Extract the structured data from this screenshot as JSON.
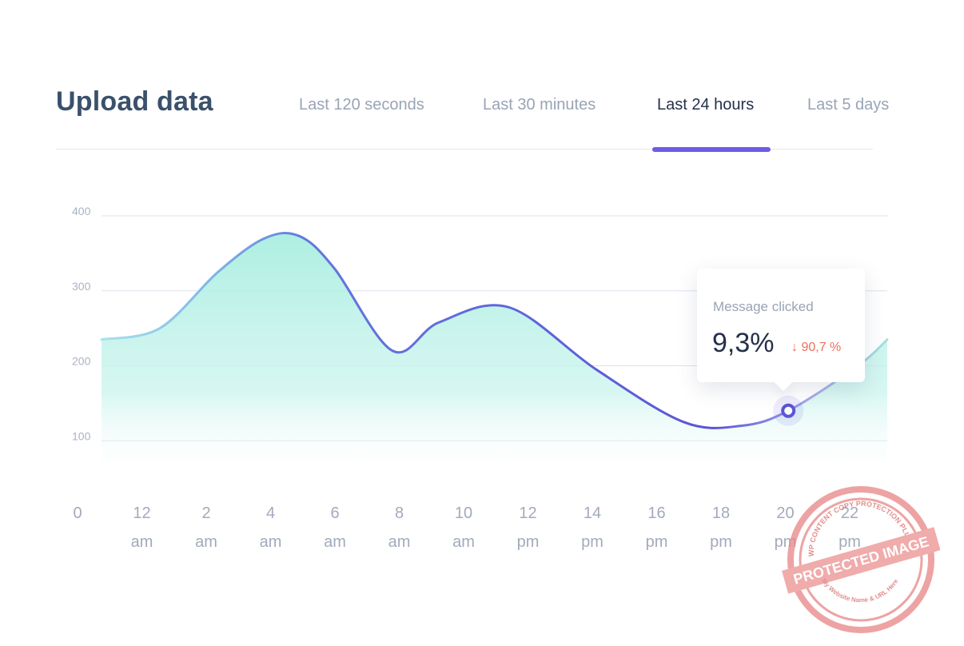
{
  "header": {
    "title": "Upload data",
    "tabs": [
      {
        "label": "Last 120 seconds",
        "active": false
      },
      {
        "label": "Last 30 minutes",
        "active": false
      },
      {
        "label": "Last 24 hours",
        "active": true
      },
      {
        "label": "Last 5 days",
        "active": false
      }
    ]
  },
  "tooltip": {
    "label": "Message clicked",
    "value": "9,3%",
    "change": "↓ 90,7 %",
    "change_color": "#ef6f5d"
  },
  "colors": {
    "accent": "#6c5ce7",
    "line_start": "#8fd8e8",
    "line_end": "#5b55d6",
    "fill_top": "#a9eee0",
    "grid": "#dde1ec",
    "text_muted": "#9aa3b6",
    "text_dark": "#25304a"
  },
  "watermark": {
    "text": "PROTECTED IMAGE",
    "arc_text": "WP CONTENT COPY PROTECTION PLUGIN",
    "bottom_text": "My Website Name & URL Here"
  },
  "chart_data": {
    "type": "area",
    "title": "Upload data",
    "xlabel": "",
    "ylabel": "",
    "ylim": [
      0,
      400
    ],
    "y_ticks": [
      100,
      200,
      300,
      400
    ],
    "x_ticks": [
      {
        "num": "0",
        "unit": ""
      },
      {
        "num": "12",
        "unit": "am"
      },
      {
        "num": "2",
        "unit": "am"
      },
      {
        "num": "4",
        "unit": "am"
      },
      {
        "num": "6",
        "unit": "am"
      },
      {
        "num": "8",
        "unit": "am"
      },
      {
        "num": "10",
        "unit": "am"
      },
      {
        "num": "12",
        "unit": "pm"
      },
      {
        "num": "14",
        "unit": "pm"
      },
      {
        "num": "16",
        "unit": "pm"
      },
      {
        "num": "18",
        "unit": "pm"
      },
      {
        "num": "20",
        "unit": "pm"
      },
      {
        "num": "22",
        "unit": "pm"
      }
    ],
    "series": [
      {
        "name": "Upload data",
        "x": [
          0,
          1,
          2,
          2.8,
          3.4,
          4,
          5,
          5.8,
          7,
          8.5,
          10,
          11,
          11.8,
          13,
          13.5
        ],
        "y": [
          235,
          250,
          325,
          370,
          373,
          330,
          220,
          258,
          278,
          195,
          125,
          120,
          140,
          200,
          235
        ]
      }
    ],
    "highlight": {
      "x": 11.8,
      "y": 140
    }
  }
}
